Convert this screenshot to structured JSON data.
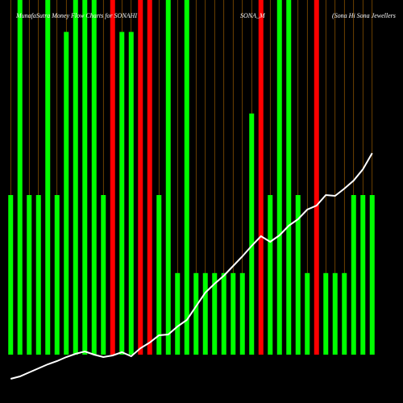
{
  "chart_data": {
    "type": "bar",
    "title": "MunafaSutra Money Flow Charts for SONAHI",
    "subtitle": "SONA_M",
    "company": "(Sona Hi Sona Jewellers",
    "categories": [
      null,
      null,
      null,
      null,
      null,
      null,
      null,
      null,
      null,
      null,
      null,
      null,
      null,
      null,
      null,
      null,
      null,
      null,
      null,
      null,
      null,
      null,
      null,
      null,
      null,
      null,
      null,
      null,
      null,
      null,
      null,
      null,
      null,
      null,
      null,
      null,
      null,
      null,
      null,
      null
    ],
    "ylim": [
      0,
      100
    ],
    "y2lim": [
      0,
      500
    ],
    "series": [
      {
        "name": "Money flow",
        "colors": [
          "#00ff00",
          "#00ff00",
          "#00ff00",
          "#00ff00",
          "#00ff00",
          "#00ff00",
          "#00ff00",
          "#00ff00",
          "#00ff00",
          "#00ff00",
          "#00ff00",
          "#ff0000",
          "#00ff00",
          "#00ff00",
          "#ff0000",
          "#ff0000",
          "#00ff00",
          "#00ff00",
          "#00ff00",
          "#00ff00",
          "#00ff00",
          "#00ff00",
          "#00ff00",
          "#00ff00",
          "#00ff00",
          "#00ff00",
          "#00ff00",
          "#ff0000",
          "#00ff00",
          "#00ff00",
          "#00ff00",
          "#00ff00",
          "#00ff00",
          "#ff0000",
          "#00ff00",
          "#00ff00",
          "#00ff00",
          "#00ff00",
          "#00ff00",
          "#00ff00"
        ],
        "values": [
          45,
          100,
          45,
          45,
          100,
          45,
          91,
          100,
          100,
          100,
          45,
          100,
          91,
          91,
          100,
          100,
          45,
          100,
          23,
          100,
          23,
          23,
          23,
          23,
          23,
          23,
          68,
          100,
          45,
          100,
          100,
          45,
          23,
          100,
          23,
          23,
          23,
          45,
          45,
          45
        ]
      },
      {
        "name": "Price",
        "color": "#ffffff",
        "axis": "y2",
        "values": [
          30,
          33,
          38,
          43,
          48,
          52,
          57,
          61,
          64,
          60,
          57,
          59,
          63,
          58,
          68,
          75,
          84,
          85,
          95,
          103,
          120,
          137,
          148,
          158,
          170,
          182,
          195,
          207,
          200,
          208,
          220,
          228,
          240,
          245,
          258,
          257,
          266,
          276,
          290,
          310
        ]
      }
    ]
  }
}
